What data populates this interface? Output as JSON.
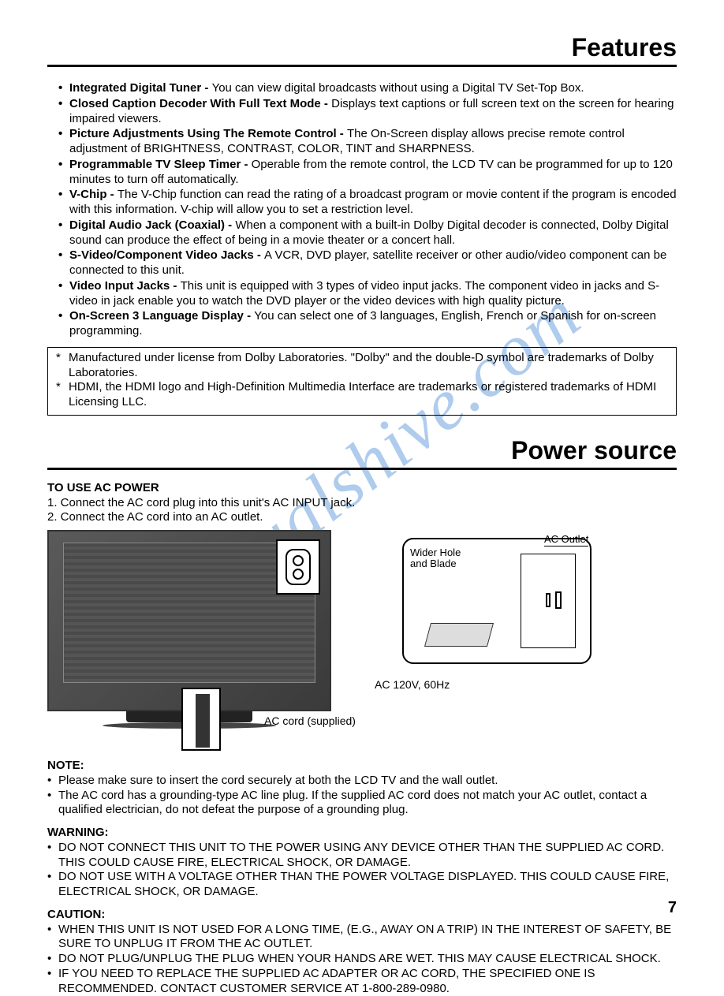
{
  "watermark": "manualshive.com",
  "section1_title": "Features",
  "features": [
    {
      "title": "Integrated Digital Tuner - ",
      "text": "You can view digital broadcasts without using a Digital TV Set-Top Box."
    },
    {
      "title": "Closed Caption Decoder With Full Text Mode - ",
      "text": "Displays text captions or full screen text on the screen for hearing impaired viewers."
    },
    {
      "title": "Picture Adjustments Using The Remote Control - ",
      "text": "The On-Screen display allows precise remote control adjustment of BRIGHTNESS, CONTRAST, COLOR, TINT and SHARPNESS."
    },
    {
      "title": "Programmable TV Sleep Timer - ",
      "text": "Operable from the remote control, the LCD TV can be programmed for up to 120 minutes to turn off automatically."
    },
    {
      "title": "V-Chip - ",
      "text": "The V-Chip function can read the rating of a broadcast program or movie content if the program is encoded with this information. V-chip will allow you to set a restriction level."
    },
    {
      "title": "Digital Audio Jack (Coaxial) - ",
      "text": "When a component with a built-in Dolby Digital decoder is connected, Dolby Digital sound can produce the effect of being in a movie theater or a concert hall."
    },
    {
      "title": "S-Video/Component Video Jacks - ",
      "text": "A VCR, DVD player, satellite receiver or other audio/video component can be connected to this unit."
    },
    {
      "title": "Video Input Jacks - ",
      "text": "This unit is equipped with 3 types of video input jacks. The component video in jacks and S-video in jack enable you to watch the DVD player or the video devices with high quality picture."
    },
    {
      "title": "On-Screen 3 Language Display - ",
      "text": "You can select one of 3 languages, English, French or Spanish for on-screen programming."
    }
  ],
  "trademarks": [
    "Manufactured under license from Dolby Laboratories. \"Dolby\" and the double-D symbol are trademarks of Dolby Laboratories.",
    "HDMI, the HDMI logo and High-Definition Multimedia Interface are trademarks or registered trademarks of HDMI Licensing LLC."
  ],
  "section2_title": "Power source",
  "power": {
    "heading": "TO USE AC POWER",
    "step1": "1. Connect the AC cord plug into this unit's AC INPUT jack.",
    "step2": "2. Connect the AC cord into an AC outlet."
  },
  "diagram": {
    "wider_hole": "Wider Hole\nand Blade",
    "ac_outlet": "AC Outlet",
    "ac_120v": "AC 120V, 60Hz",
    "ac_cord": "AC cord (supplied)"
  },
  "note": {
    "heading": "NOTE:",
    "items": [
      "Please make sure to insert the cord securely at both the LCD TV and the wall outlet.",
      "The AC cord has a grounding-type AC line plug.  If the supplied AC cord does not match your AC outlet, contact a qualified electrician, do not defeat the purpose of a grounding plug."
    ]
  },
  "warning": {
    "heading": "WARNING:",
    "items": [
      "DO NOT CONNECT THIS UNIT TO THE POWER USING ANY DEVICE OTHER THAN THE SUPPLIED AC CORD. THIS COULD CAUSE FIRE, ELECTRICAL SHOCK, OR DAMAGE.",
      "DO NOT USE WITH A VOLTAGE OTHER THAN THE POWER VOLTAGE DISPLAYED. THIS COULD CAUSE FIRE, ELECTRICAL SHOCK, OR DAMAGE."
    ]
  },
  "caution": {
    "heading": "CAUTION:",
    "items": [
      "WHEN THIS UNIT IS NOT USED FOR A LONG TIME, (E.G., AWAY ON A TRIP) IN THE INTEREST OF SAFETY, BE SURE TO UNPLUG IT FROM THE AC OUTLET.",
      "DO NOT PLUG/UNPLUG THE PLUG WHEN YOUR HANDS ARE WET. THIS MAY CAUSE ELECTRICAL SHOCK.",
      "IF YOU NEED TO REPLACE THE SUPPLIED AC ADAPTER OR AC CORD, THE SPECIFIED ONE IS RECOMMENDED.  CONTACT CUSTOMER SERVICE AT 1-800-289-0980."
    ]
  },
  "page_number": "7"
}
